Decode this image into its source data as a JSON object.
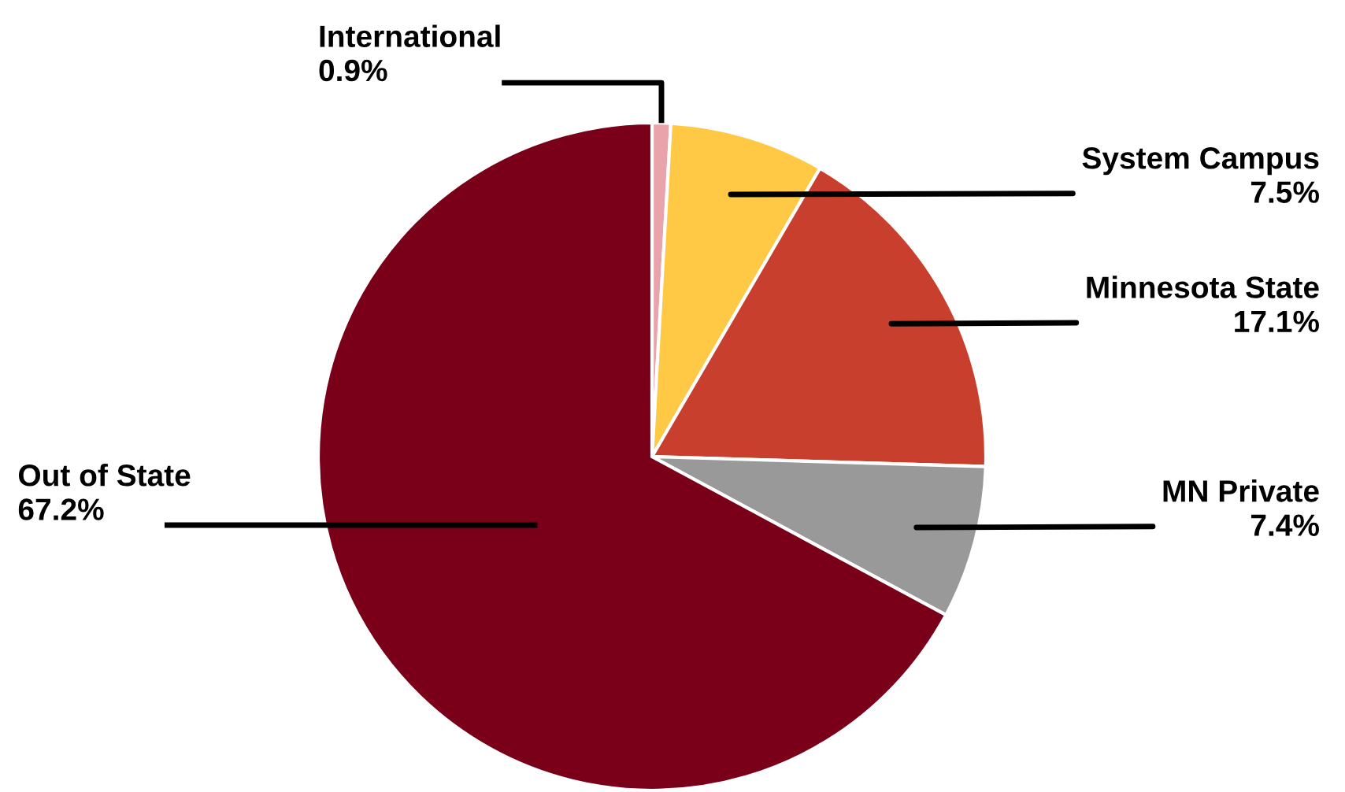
{
  "chart_data": {
    "type": "pie",
    "categories": [
      "International",
      "System Campus",
      "Minnesota State",
      "MN Private",
      "Out of State"
    ],
    "values": [
      0.9,
      7.5,
      17.1,
      7.4,
      67.2
    ],
    "value_labels": [
      "0.9%",
      "7.5%",
      "17.1%",
      "7.4%",
      "67.2%"
    ],
    "colors": [
      "#e8a3ab",
      "#ffc845",
      "#c8402d",
      "#999999",
      "#7a0019"
    ],
    "legend": false
  }
}
